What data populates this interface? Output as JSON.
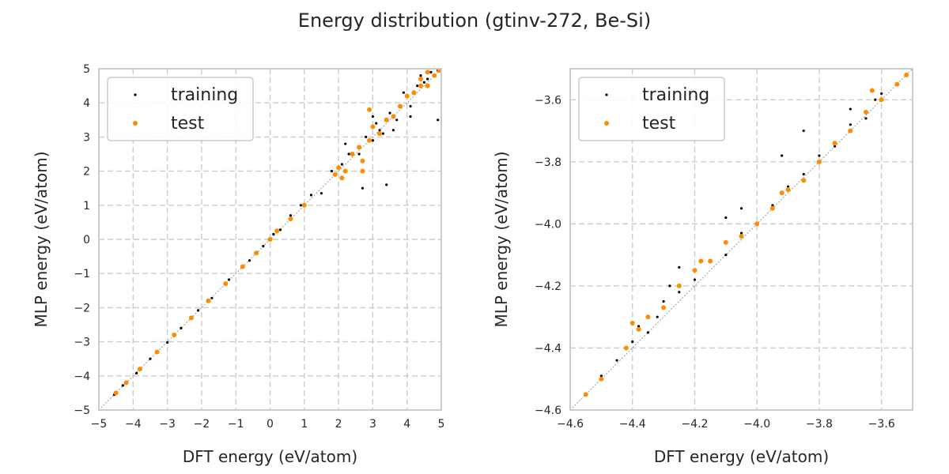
{
  "title": "Energy distribution (gtinv-272, Be-Si)",
  "chart_data": [
    {
      "type": "scatter",
      "xlabel": "DFT energy (eV/atom)",
      "ylabel": "MLP energy (eV/atom)",
      "xlim": [
        -5,
        5
      ],
      "ylim": [
        -5,
        5
      ],
      "xticks": [
        -5,
        -4,
        -3,
        -2,
        -1,
        0,
        1,
        2,
        3,
        4,
        5
      ],
      "yticks": [
        -5,
        -4,
        -3,
        -2,
        -1,
        0,
        1,
        2,
        3,
        4,
        5
      ],
      "grid": true,
      "legend_position": "top-left",
      "diagonal_reference": true,
      "series": [
        {
          "name": "training",
          "color": "#000000",
          "points": [
            [
              -4.55,
              -4.55
            ],
            [
              -4.3,
              -4.28
            ],
            [
              -3.9,
              -3.92
            ],
            [
              -3.5,
              -3.5
            ],
            [
              -3.0,
              -3.02
            ],
            [
              -2.6,
              -2.6
            ],
            [
              -2.1,
              -2.08
            ],
            [
              -1.7,
              -1.72
            ],
            [
              -1.2,
              -1.18
            ],
            [
              -0.6,
              -0.62
            ],
            [
              -0.2,
              -0.2
            ],
            [
              0.1,
              0.15
            ],
            [
              0.3,
              0.28
            ],
            [
              0.6,
              0.7
            ],
            [
              0.9,
              1.0
            ],
            [
              1.2,
              1.3
            ],
            [
              1.5,
              1.35
            ],
            [
              1.8,
              2.0
            ],
            [
              2.1,
              2.2
            ],
            [
              2.3,
              2.5
            ],
            [
              2.6,
              2.5
            ],
            [
              2.8,
              3.0
            ],
            [
              3.0,
              2.9
            ],
            [
              3.1,
              3.4
            ],
            [
              3.3,
              3.1
            ],
            [
              3.5,
              3.7
            ],
            [
              3.6,
              3.2
            ],
            [
              3.8,
              3.9
            ],
            [
              3.9,
              4.3
            ],
            [
              4.1,
              3.9
            ],
            [
              4.3,
              4.5
            ],
            [
              4.5,
              4.6
            ],
            [
              4.7,
              4.9
            ],
            [
              4.9,
              4.95
            ],
            [
              4.9,
              3.5
            ],
            [
              4.1,
              3.6
            ],
            [
              3.4,
              1.6
            ],
            [
              2.7,
              1.5
            ],
            [
              2.2,
              2.8
            ],
            [
              3.0,
              3.6
            ],
            [
              4.6,
              4.7
            ],
            [
              4.4,
              4.8
            ],
            [
              3.7,
              3.5
            ],
            [
              3.2,
              3.2
            ]
          ]
        },
        {
          "name": "test",
          "color": "#ff8c00",
          "points": [
            [
              -4.5,
              -4.5
            ],
            [
              -4.2,
              -4.2
            ],
            [
              -3.8,
              -3.8
            ],
            [
              -3.3,
              -3.3
            ],
            [
              -2.8,
              -2.8
            ],
            [
              -2.3,
              -2.3
            ],
            [
              -1.8,
              -1.8
            ],
            [
              -1.3,
              -1.3
            ],
            [
              -0.8,
              -0.8
            ],
            [
              -0.4,
              -0.4
            ],
            [
              0.0,
              0.0
            ],
            [
              0.2,
              0.25
            ],
            [
              0.6,
              0.6
            ],
            [
              1.0,
              1.0
            ],
            [
              1.9,
              1.9
            ],
            [
              2.0,
              2.1
            ],
            [
              2.2,
              2.0
            ],
            [
              2.4,
              2.5
            ],
            [
              2.6,
              2.7
            ],
            [
              2.7,
              2.3
            ],
            [
              2.9,
              2.9
            ],
            [
              3.0,
              3.3
            ],
            [
              3.2,
              3.1
            ],
            [
              3.4,
              3.5
            ],
            [
              3.6,
              3.6
            ],
            [
              3.8,
              3.9
            ],
            [
              4.0,
              4.2
            ],
            [
              4.2,
              4.3
            ],
            [
              4.4,
              4.5
            ],
            [
              4.6,
              4.5
            ],
            [
              4.8,
              4.8
            ],
            [
              4.95,
              4.95
            ],
            [
              2.9,
              3.8
            ],
            [
              2.1,
              1.8
            ],
            [
              2.7,
              2.0
            ],
            [
              4.4,
              4.7
            ],
            [
              4.6,
              4.9
            ]
          ]
        }
      ]
    },
    {
      "type": "scatter",
      "xlabel": "DFT energy (eV/atom)",
      "ylabel": "MLP energy (eV/atom)",
      "xlim": [
        -4.6,
        -3.5
      ],
      "ylim": [
        -4.6,
        -3.5
      ],
      "xticks": [
        -4.6,
        -4.4,
        -4.2,
        -4.0,
        -3.8,
        -3.6
      ],
      "yticks": [
        -4.6,
        -4.4,
        -4.2,
        -4.0,
        -3.8,
        -3.6
      ],
      "grid": true,
      "legend_position": "top-left",
      "diagonal_reference": true,
      "series": [
        {
          "name": "training",
          "color": "#000000",
          "points": [
            [
              -4.55,
              -4.55
            ],
            [
              -4.5,
              -4.49
            ],
            [
              -4.45,
              -4.44
            ],
            [
              -4.4,
              -4.38
            ],
            [
              -4.35,
              -4.35
            ],
            [
              -4.32,
              -4.3
            ],
            [
              -4.3,
              -4.25
            ],
            [
              -4.28,
              -4.2
            ],
            [
              -4.25,
              -4.22
            ],
            [
              -4.2,
              -4.18
            ],
            [
              -4.15,
              -4.12
            ],
            [
              -4.1,
              -4.1
            ],
            [
              -4.05,
              -4.03
            ],
            [
              -4.0,
              -4.0
            ],
            [
              -3.95,
              -3.94
            ],
            [
              -3.9,
              -3.88
            ],
            [
              -3.85,
              -3.84
            ],
            [
              -3.8,
              -3.78
            ],
            [
              -3.75,
              -3.75
            ],
            [
              -3.7,
              -3.68
            ],
            [
              -3.65,
              -3.66
            ],
            [
              -3.6,
              -3.58
            ],
            [
              -3.55,
              -3.55
            ],
            [
              -3.52,
              -3.52
            ],
            [
              -4.25,
              -4.14
            ],
            [
              -4.1,
              -3.98
            ],
            [
              -3.92,
              -3.78
            ],
            [
              -3.85,
              -3.7
            ],
            [
              -3.62,
              -3.6
            ],
            [
              -4.38,
              -4.33
            ],
            [
              -4.05,
              -3.95
            ],
            [
              -3.7,
              -3.63
            ]
          ]
        },
        {
          "name": "test",
          "color": "#ff8c00",
          "points": [
            [
              -4.55,
              -4.55
            ],
            [
              -4.5,
              -4.5
            ],
            [
              -4.42,
              -4.4
            ],
            [
              -4.38,
              -4.34
            ],
            [
              -4.35,
              -4.3
            ],
            [
              -4.3,
              -4.27
            ],
            [
              -4.25,
              -4.2
            ],
            [
              -4.2,
              -4.15
            ],
            [
              -4.15,
              -4.12
            ],
            [
              -4.1,
              -4.06
            ],
            [
              -4.05,
              -4.04
            ],
            [
              -4.0,
              -4.0
            ],
            [
              -3.95,
              -3.95
            ],
            [
              -3.9,
              -3.89
            ],
            [
              -3.85,
              -3.86
            ],
            [
              -3.8,
              -3.8
            ],
            [
              -3.75,
              -3.74
            ],
            [
              -3.7,
              -3.7
            ],
            [
              -3.65,
              -3.64
            ],
            [
              -3.6,
              -3.6
            ],
            [
              -3.55,
              -3.55
            ],
            [
              -3.52,
              -3.52
            ],
            [
              -3.63,
              -3.57
            ],
            [
              -3.92,
              -3.9
            ],
            [
              -4.4,
              -4.32
            ],
            [
              -4.18,
              -4.12
            ]
          ]
        }
      ]
    }
  ]
}
